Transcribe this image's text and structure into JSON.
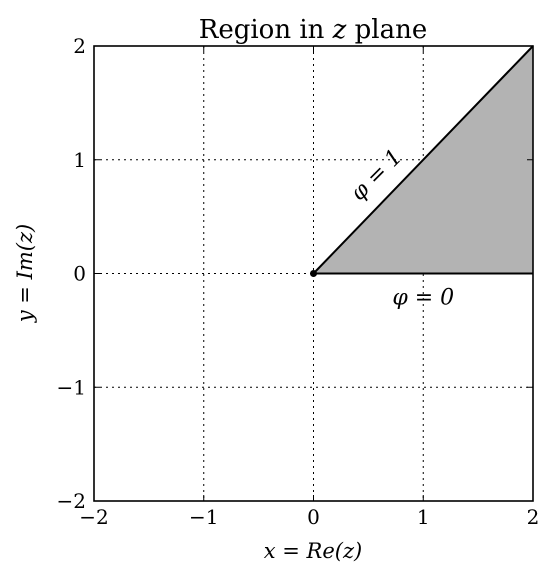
{
  "chart_data": {
    "type": "line",
    "title": "Region in z plane",
    "title_parts": {
      "prefix": "Region in ",
      "var": "z",
      "suffix": " plane"
    },
    "xlabel": "x = Re(z)",
    "ylabel": "y = Im(z)",
    "xlim": [
      -2,
      2
    ],
    "ylim": [
      -2,
      2
    ],
    "x_ticks": [
      -2,
      -1,
      0,
      1,
      2
    ],
    "y_ticks": [
      -2,
      -1,
      0,
      1,
      2
    ],
    "x_tick_labels": [
      "−2",
      "−1",
      "0",
      "1",
      "2"
    ],
    "y_tick_labels": [
      "−2",
      "−1",
      "0",
      "1",
      "2"
    ],
    "grid": true,
    "series": [
      {
        "kind": "boundary-ray",
        "x": [
          0,
          2
        ],
        "y": [
          0,
          0
        ]
      },
      {
        "kind": "boundary-ray",
        "x": [
          0,
          2
        ],
        "y": [
          0,
          2
        ]
      }
    ],
    "shaded_region": {
      "vertices": [
        [
          0,
          0
        ],
        [
          2,
          0
        ],
        [
          2,
          2
        ]
      ],
      "color": "#b3b3b3"
    },
    "origin_point": {
      "x": 0,
      "y": 0
    },
    "annotations": [
      {
        "text": "φ = 1",
        "x": 0.58,
        "y": 0.86,
        "rotation_deg": -45
      },
      {
        "text": "φ = 0",
        "x": 1.0,
        "y": -0.22,
        "rotation_deg": 0
      }
    ],
    "colors": {
      "line": "#000000",
      "fill": "#b3b3b3"
    }
  }
}
